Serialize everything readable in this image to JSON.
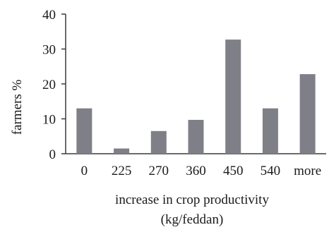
{
  "chart_data": {
    "type": "bar",
    "categories": [
      "0",
      "225",
      "270",
      "360",
      "450",
      "540",
      "more"
    ],
    "values": [
      13,
      1.5,
      6.5,
      9.7,
      32.7,
      13,
      22.8
    ],
    "xlabel_line1": "increase in crop productivity",
    "xlabel_line2": "(kg/feddan)",
    "ylabel": "farmers %",
    "ylim": [
      0,
      40
    ],
    "yticks": [
      0,
      10,
      20,
      30,
      40
    ],
    "grid": false,
    "legend": "none",
    "bar_color": "#7f7f87",
    "axis_color": "#3a3a3a"
  }
}
